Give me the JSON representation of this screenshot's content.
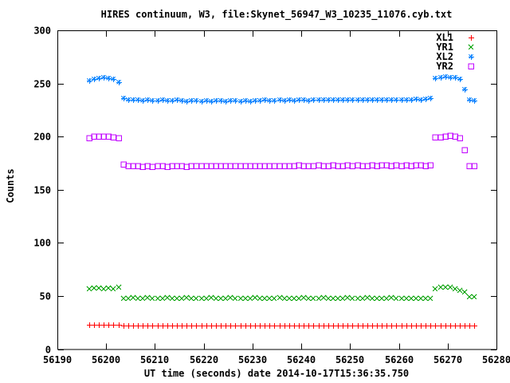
{
  "chart_data": {
    "type": "scatter",
    "title": "HIRES continuum, W3, file:Skynet_56947_W3_10235_11076.cyb.txt",
    "xlabel": "UT time (seconds) date 2014-10-17T15:36:35.750",
    "ylabel": "Counts",
    "xlim": [
      56190,
      56280
    ],
    "ylim": [
      0,
      300
    ],
    "xticks": [
      56190,
      56200,
      56210,
      56220,
      56230,
      56240,
      56250,
      56260,
      56270,
      56280
    ],
    "yticks": [
      0,
      50,
      100,
      150,
      200,
      250,
      300
    ],
    "grid": false,
    "legend_position": "top-right-inside",
    "x_start": 56196.5,
    "x_step": 1.0,
    "n_points": 80,
    "series": [
      {
        "name": "XL1",
        "marker": "plus",
        "color": "#ff0000",
        "values": [
          23,
          23,
          23,
          23,
          23,
          23,
          23,
          22.5,
          22.5,
          22.5,
          22.5,
          22.5,
          22.5,
          22.5,
          22.5,
          22.5,
          22.5,
          22.5,
          22.5,
          22.5,
          22.5,
          22.5,
          22.5,
          22.5,
          22.5,
          22.5,
          22.5,
          22.5,
          22.5,
          22.5,
          22.5,
          22.5,
          22.5,
          22.5,
          22.5,
          22.5,
          22.5,
          22.5,
          22.5,
          22.5,
          22.5,
          22.5,
          22.5,
          22.5,
          22.5,
          22.5,
          22.5,
          22.5,
          22.5,
          22.5,
          22.5,
          22.5,
          22.5,
          22.5,
          22.5,
          22.5,
          22.5,
          22.5,
          22.5,
          22.5,
          22.5,
          22.5,
          22.5,
          22.5,
          22.5,
          22.5,
          22.5,
          22.5,
          22.5,
          22.5,
          22.5,
          22.5,
          22.5,
          22.5,
          22.5,
          22.5,
          22.5,
          22.5,
          22.5,
          22.5
        ]
      },
      {
        "name": "YR1",
        "marker": "cross",
        "color": "#00a000",
        "values": [
          56.5,
          57.5,
          57.5,
          57,
          57.5,
          57,
          58,
          48,
          47.5,
          48.5,
          47.5,
          48,
          48.5,
          47.5,
          48,
          47.5,
          48.5,
          48,
          47.5,
          48,
          48.5,
          47.5,
          48,
          48,
          47.5,
          48.5,
          48,
          47.5,
          48,
          48.5,
          47.5,
          48,
          47.5,
          48,
          48.5,
          48,
          47.5,
          48,
          48,
          48.5,
          47.5,
          48,
          48,
          47.5,
          48.5,
          48,
          47.5,
          48,
          48.5,
          47.5,
          48,
          48,
          47.5,
          48.5,
          48,
          47.5,
          48,
          48.5,
          47.5,
          48,
          47.5,
          48,
          48.5,
          48,
          47.5,
          48,
          48,
          47.5,
          48,
          47.5,
          47.5,
          57,
          58,
          58.5,
          58,
          57,
          55,
          53.5,
          49.5,
          49
        ]
      },
      {
        "name": "XL2",
        "marker": "asterisk",
        "color": "#0080ff",
        "values": [
          252.5,
          254,
          255,
          255.5,
          255,
          254,
          251.5,
          236,
          235,
          234.5,
          234.5,
          234,
          234.5,
          234,
          234,
          234.5,
          234,
          234,
          234.5,
          234,
          233.5,
          234,
          234,
          233.5,
          234,
          233.5,
          234,
          234,
          233.5,
          234,
          234,
          233.5,
          234,
          233.5,
          234,
          234,
          234.5,
          234,
          234,
          234.5,
          234,
          234.5,
          234,
          234.5,
          234.5,
          234,
          234.5,
          234.5,
          235,
          234.5,
          234.5,
          235,
          234.5,
          235,
          235,
          234.5,
          235,
          234.5,
          235,
          234.5,
          235,
          235,
          234.5,
          235,
          235,
          234.5,
          235,
          235.5,
          235,
          235.5,
          236,
          255,
          256,
          256.5,
          256,
          255.5,
          254,
          244.5,
          235,
          234
        ]
      },
      {
        "name": "YR2",
        "marker": "square",
        "color": "#c000ff",
        "values": [
          198.5,
          200,
          200.5,
          200,
          200.5,
          199.5,
          198.5,
          174,
          172.5,
          172,
          172,
          171.5,
          172,
          171.5,
          172,
          172,
          171.5,
          172,
          172.5,
          172,
          171.5,
          172,
          172,
          172.5,
          172,
          172,
          172.5,
          172,
          172.5,
          172.5,
          172,
          172.5,
          172,
          172.5,
          172,
          172.5,
          172.5,
          172,
          172.5,
          172.5,
          172,
          172.5,
          172.5,
          173,
          172.5,
          172,
          172.5,
          173,
          172.5,
          172.5,
          173,
          172.5,
          172.5,
          173,
          172.5,
          173,
          172.5,
          172.5,
          173,
          172.5,
          173,
          173,
          172.5,
          173,
          172.5,
          173,
          172.5,
          173,
          173,
          172.5,
          173,
          199,
          199.5,
          200.5,
          201,
          200.5,
          198.5,
          187.5,
          172,
          172
        ]
      }
    ]
  }
}
